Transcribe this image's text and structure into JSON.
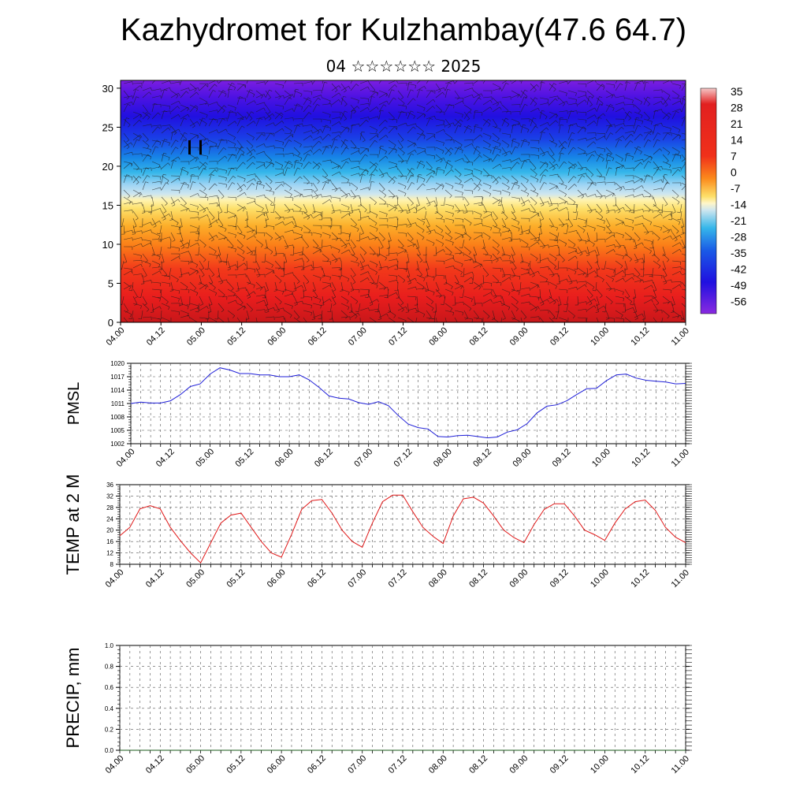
{
  "title": "Kazhydromet for Kulzhambay(47.6 64.7)",
  "subtitle": "04 ☆☆☆☆☆☆ 2025",
  "colors": {
    "pmsl_line": "#1f1fd8",
    "temp_line": "#e01818",
    "precip_line": "#1a5a1a"
  },
  "chart_data": [
    {
      "type": "heatmap",
      "name": "cross-section",
      "y_ticks": [
        "0",
        "5",
        "10",
        "15",
        "20",
        "25",
        "30"
      ],
      "ylim": [
        0,
        31
      ],
      "x_ticks": [
        "04.00",
        "04.12",
        "05.00",
        "05.12",
        "06.00",
        "06.12",
        "07.00",
        "07.12",
        "08.00",
        "08.12",
        "09.00",
        "09.12",
        "10.00",
        "10.12",
        "11.00"
      ],
      "colorbar_labels": [
        "35",
        "28",
        "21",
        "14",
        "7",
        "0",
        "-7",
        "-14",
        "-21",
        "-28",
        "-35",
        "-42",
        "-49",
        "-56"
      ],
      "grid": false
    },
    {
      "type": "line",
      "ylabel": "PMSL",
      "ylim": [
        1002,
        1020
      ],
      "y_ticks": [
        "1002",
        "1005",
        "1008",
        "1011",
        "1014",
        "1017",
        "1020"
      ],
      "x_ticks": [
        "04.00",
        "04.12",
        "05.00",
        "05.12",
        "06.00",
        "06.12",
        "07.00",
        "07.12",
        "08.00",
        "08.12",
        "09.00",
        "09.12",
        "10.00",
        "10.12",
        "11.00"
      ],
      "x": [
        0,
        1,
        2,
        3,
        4,
        5,
        6,
        7,
        8,
        9,
        10,
        11,
        12,
        13,
        14,
        15,
        16,
        17,
        18,
        19,
        20,
        21,
        22,
        23,
        24,
        25,
        26,
        27,
        28,
        29,
        30,
        31,
        32,
        33,
        34,
        35,
        36,
        37,
        38,
        39,
        40,
        41,
        42,
        43,
        44,
        45,
        46,
        47,
        48,
        49,
        50,
        51,
        52,
        53,
        54,
        55,
        56
      ],
      "values": [
        1011,
        1011.3,
        1011.1,
        1011.1,
        1011.6,
        1013,
        1014.8,
        1015.4,
        1017.6,
        1019,
        1018.5,
        1017.7,
        1017.7,
        1017.4,
        1017.4,
        1017,
        1017,
        1017.4,
        1016.3,
        1014.6,
        1012.7,
        1012.2,
        1012,
        1011.2,
        1010.8,
        1011.4,
        1010.5,
        1008.3,
        1006.4,
        1005.6,
        1005.3,
        1003.6,
        1003.5,
        1003.8,
        1003.9,
        1003.6,
        1003.3,
        1003.5,
        1004.6,
        1005.1,
        1006.5,
        1008.9,
        1010.4,
        1010.7,
        1011.6,
        1013,
        1014.3,
        1014.4,
        1016.1,
        1017.4,
        1017.6,
        1016.7,
        1016.2,
        1016,
        1015.8,
        1015.4,
        1015.5
      ],
      "grid": true
    },
    {
      "type": "line",
      "ylabel": "TEMP at 2 M",
      "ylim": [
        8,
        36
      ],
      "y_ticks": [
        "8",
        "12",
        "16",
        "20",
        "24",
        "28",
        "32",
        "36"
      ],
      "x_ticks": [
        "04.00",
        "04.12",
        "05.00",
        "05.12",
        "06.00",
        "06.12",
        "07.00",
        "07.12",
        "08.00",
        "08.12",
        "09.00",
        "09.12",
        "10.00",
        "10.12",
        "11.00"
      ],
      "x": [
        0,
        1,
        2,
        3,
        4,
        5,
        6,
        7,
        8,
        9,
        10,
        11,
        12,
        13,
        14,
        15,
        16,
        17,
        18,
        19,
        20,
        21,
        22,
        23,
        24,
        25,
        26,
        27,
        28,
        29,
        30,
        31,
        32,
        33,
        34,
        35,
        36,
        37,
        38,
        39,
        40,
        41,
        42,
        43,
        44,
        45,
        46,
        47,
        48,
        49,
        50,
        51,
        52,
        53,
        54,
        55,
        56
      ],
      "values": [
        18,
        21,
        27.5,
        28.6,
        27.5,
        21,
        16.3,
        12,
        8.5,
        15.5,
        22.5,
        25.3,
        26,
        21,
        16,
        12,
        10.5,
        18.5,
        27.3,
        30.4,
        30.8,
        26,
        20,
        16,
        14,
        22.5,
        30,
        32.3,
        32.3,
        26.5,
        21,
        17.8,
        15.3,
        25,
        31,
        31.6,
        29.5,
        25,
        20,
        17.4,
        15.6,
        22,
        27.3,
        29.3,
        29.3,
        25,
        20,
        18.4,
        16.4,
        22.5,
        27.4,
        30,
        30.6,
        27,
        21,
        17.5,
        15.6
      ],
      "grid": true
    },
    {
      "type": "line",
      "ylabel": "PRECIP, mm",
      "ylim": [
        0,
        1
      ],
      "y_ticks": [
        "0.0",
        "0.2",
        "0.4",
        "0.6",
        "0.8",
        "1.0"
      ],
      "x_ticks": [
        "04.00",
        "04.12",
        "05.00",
        "05.12",
        "06.00",
        "06.12",
        "07.00",
        "07.12",
        "08.00",
        "08.12",
        "09.00",
        "09.12",
        "10.00",
        "10.12",
        "11.00"
      ],
      "x": [
        0,
        56
      ],
      "values": [
        0,
        0
      ],
      "grid": true
    }
  ]
}
